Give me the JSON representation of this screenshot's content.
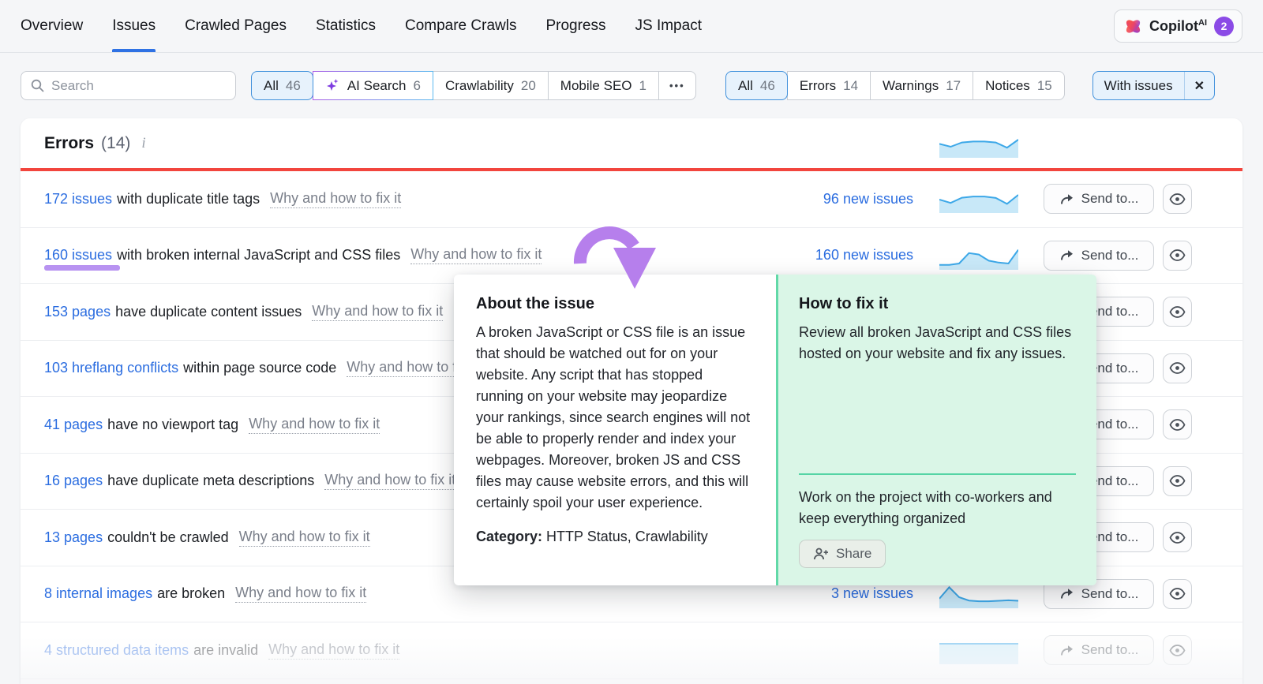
{
  "nav": {
    "tabs": [
      {
        "label": "Overview",
        "active": false
      },
      {
        "label": "Issues",
        "active": true
      },
      {
        "label": "Crawled Pages",
        "active": false
      },
      {
        "label": "Statistics",
        "active": false
      },
      {
        "label": "Compare Crawls",
        "active": false
      },
      {
        "label": "Progress",
        "active": false
      },
      {
        "label": "JS Impact",
        "active": false
      }
    ],
    "copilot": {
      "label": "Copilot",
      "sup": "AI",
      "badge": "2"
    }
  },
  "filters": {
    "search_placeholder": "Search",
    "category_chips": [
      {
        "label": "All",
        "count": "46"
      },
      {
        "label": "AI Search",
        "count": "6"
      },
      {
        "label": "Crawlability",
        "count": "20"
      },
      {
        "label": "Mobile SEO",
        "count": "1"
      }
    ],
    "more_glyph": "•••",
    "severity_chips": [
      {
        "label": "All",
        "count": "46"
      },
      {
        "label": "Errors",
        "count": "14"
      },
      {
        "label": "Warnings",
        "count": "17"
      },
      {
        "label": "Notices",
        "count": "15"
      }
    ],
    "with_issues": {
      "label": "With issues",
      "close_glyph": "✕"
    }
  },
  "errors_section": {
    "title": "Errors",
    "count": "(14)",
    "info_glyph": "i"
  },
  "labels": {
    "send": "Send to..."
  },
  "header_spark": [
    52,
    40,
    58,
    62,
    62,
    58,
    36,
    70
  ],
  "rows": [
    {
      "link": "172 issues",
      "rest": "with duplicate title tags",
      "why": "Why and how to fix it",
      "new_issues": "96 new issues",
      "spark": [
        50,
        36,
        58,
        63,
        63,
        57,
        32,
        70
      ]
    },
    {
      "link": "160 issues",
      "rest": "with broken internal JavaScript and CSS files",
      "why": "Why and how to fix it",
      "new_issues": "160 new issues",
      "spark": [
        14,
        14,
        20,
        64,
        58,
        32,
        24,
        20,
        78
      ]
    },
    {
      "link": "153 pages",
      "rest": "have duplicate content issues",
      "why": "Why and how to fix it",
      "new_issues": "",
      "spark": [
        42,
        46,
        44,
        48,
        45,
        50
      ]
    },
    {
      "link": "103 hreflang conflicts",
      "rest": "within page source code",
      "why": "Why and how to fix it",
      "new_issues": "",
      "spark": [
        42,
        46,
        44,
        48,
        45,
        50
      ]
    },
    {
      "link": "41 pages",
      "rest": "have no viewport tag",
      "why": "Why and how to fix it",
      "new_issues": "",
      "spark": [
        42,
        46,
        44,
        48,
        45,
        50
      ]
    },
    {
      "link": "16 pages",
      "rest": "have duplicate meta descriptions",
      "why": "Why and how to fix it",
      "new_issues": "",
      "spark": [
        42,
        46,
        44,
        48,
        45,
        50
      ]
    },
    {
      "link": "13 pages",
      "rest": "couldn't be crawled",
      "why": "Why and how to fix it",
      "new_issues": "",
      "spark": [
        42,
        46,
        44,
        48,
        45,
        50
      ]
    },
    {
      "link": "8 internal images",
      "rest": "are broken",
      "why": "Why and how to fix it",
      "new_issues": "3 new issues",
      "spark": [
        34,
        82,
        40,
        26,
        23,
        23,
        25,
        27,
        25
      ]
    },
    {
      "link": "4 structured data items",
      "rest": "are invalid",
      "why": "Why and how to fix it",
      "new_issues": "",
      "spark": [
        80,
        80,
        80,
        80,
        80,
        80
      ]
    }
  ],
  "tooltip": {
    "about_title": "About the issue",
    "about_body": "A broken JavaScript or CSS file is an issue that should be watched out for on your website. Any script that has stopped running on your website may jeopardize your rankings, since search engines will not be able to properly render and index your webpages. Moreover, broken JS and CSS files may cause website errors, and this will certainly spoil your user experience.",
    "category_label": "Category:",
    "category_value": "HTTP Status, Crawlability",
    "fix_title": "How to fix it",
    "fix_body": "Review all broken JavaScript and CSS files hosted on your website and fix any issues.",
    "share_promo": "Work on the project with co-workers and keep everything organized",
    "share_button": "Share"
  },
  "colors": {
    "accent_blue": "#2b6de0",
    "error_red": "#f2453d",
    "purple_annotation": "#b67fec",
    "spark_line": "#3da8e8",
    "spark_fill": "#c8e8f8",
    "green_panel": "#daf6e7",
    "teal_divider": "#55d4a5"
  }
}
